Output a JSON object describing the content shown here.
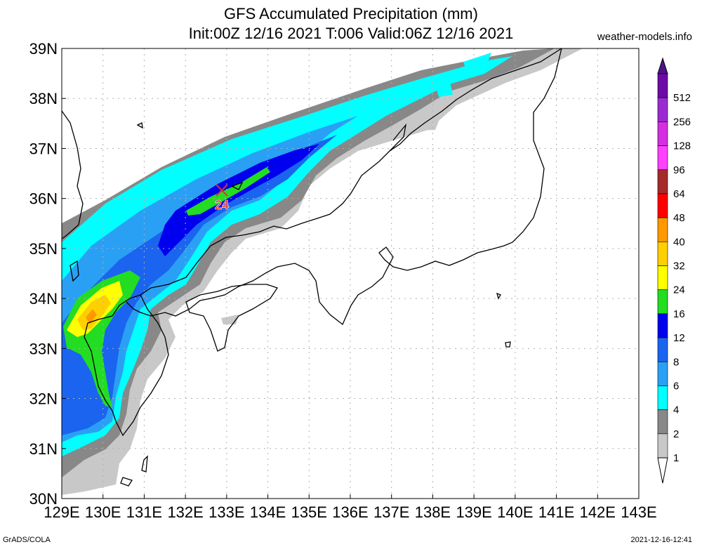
{
  "title": {
    "line1": "GFS Accumulated Precipitation (mm)",
    "line2": "Init:00Z 12/16 2021 T:006 Valid:06Z 12/16 2021",
    "credit": "weather-models.info"
  },
  "footer": {
    "left": "GrADS/COLA",
    "right": "2021-12-16-12:41"
  },
  "axes": {
    "lon_labels": [
      "129E",
      "130E",
      "131E",
      "132E",
      "133E",
      "134E",
      "135E",
      "136E",
      "137E",
      "138E",
      "139E",
      "140E",
      "141E",
      "142E",
      "143E"
    ],
    "lat_labels": [
      "39N",
      "38N",
      "37N",
      "36N",
      "35N",
      "34N",
      "33N",
      "32N",
      "31N",
      "30N"
    ],
    "lon_range": [
      129,
      143
    ],
    "lat_range": [
      30,
      39
    ]
  },
  "marker": {
    "label": "24",
    "lon": 132.9,
    "lat": 36.15
  },
  "legend": {
    "levels": [
      "512",
      "256",
      "128",
      "96",
      "64",
      "48",
      "40",
      "32",
      "24",
      "16",
      "12",
      "8",
      "6",
      "4",
      "2",
      "1"
    ],
    "colors": [
      "#6c0ba6",
      "#9b2bd1",
      "#d42fe0",
      "#ff40ff",
      "#a52a2a",
      "#ff0000",
      "#ff9900",
      "#ffd000",
      "#ffff00",
      "#22dd22",
      "#0000ee",
      "#1a64f0",
      "#2aa0f5",
      "#00ffff",
      "#888888",
      "#c8c8c8"
    ],
    "top_arrow_color": "#50128c"
  },
  "colors": {
    "c1": "#c8c8c8",
    "c2": "#888888",
    "c4": "#00ffff",
    "c6": "#2aa0f5",
    "c8": "#1a64f0",
    "c12": "#0000ee",
    "c16": "#22dd22",
    "c24": "#ffff00",
    "c32": "#ffd000",
    "c40": "#ff9900",
    "coast": "#000000",
    "grid": "#b0b0b0"
  }
}
